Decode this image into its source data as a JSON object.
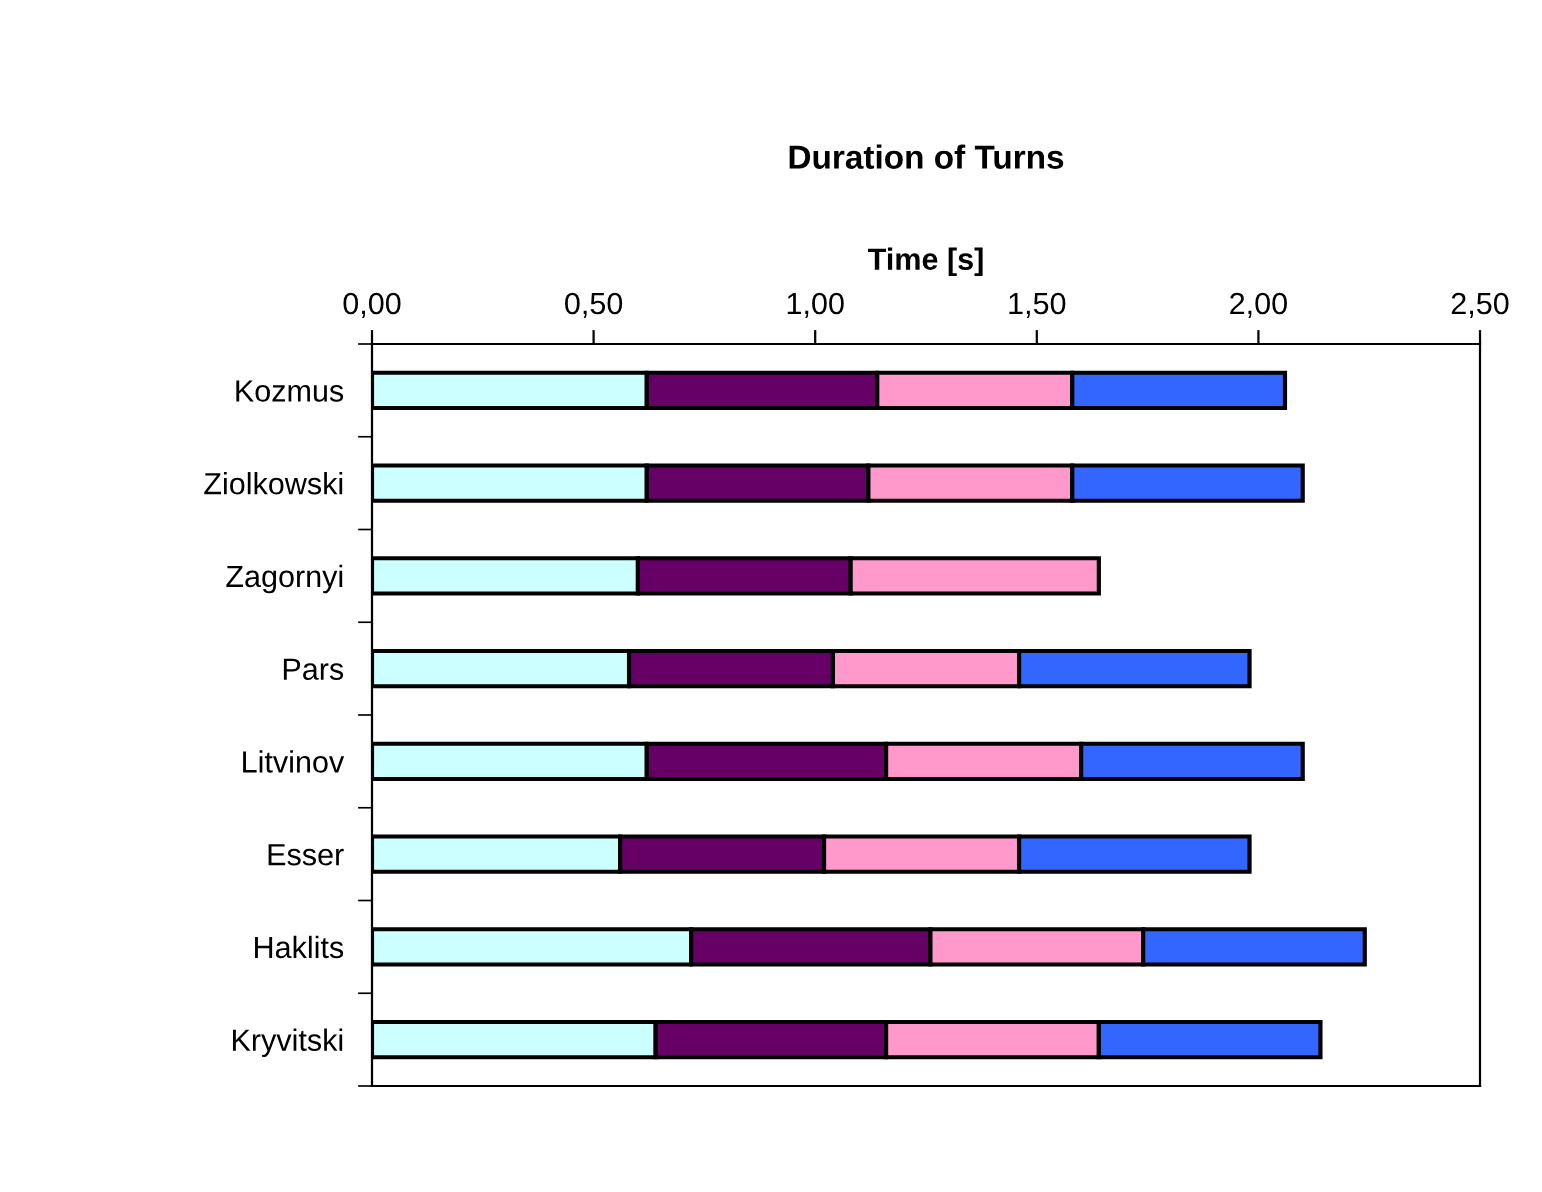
{
  "chart_data": {
    "type": "bar",
    "orientation": "horizontal",
    "stacked": true,
    "title": "Duration of Turns",
    "xlabel": "Time [s]",
    "categories": [
      "Kozmus",
      "Ziolkowski",
      "Zagornyi",
      "Pars",
      "Litvinov",
      "Esser",
      "Haklits",
      "Kryvitski"
    ],
    "series": [
      {
        "color": "#ccffff",
        "values": [
          0.62,
          0.62,
          0.6,
          0.58,
          0.62,
          0.56,
          0.72,
          0.64
        ]
      },
      {
        "color": "#660066",
        "values": [
          0.52,
          0.5,
          0.48,
          0.46,
          0.54,
          0.46,
          0.54,
          0.52
        ]
      },
      {
        "color": "#ff99cc",
        "values": [
          0.44,
          0.46,
          0.56,
          0.42,
          0.44,
          0.44,
          0.48,
          0.48
        ]
      },
      {
        "color": "#3366ff",
        "values": [
          0.48,
          0.52,
          null,
          0.52,
          0.5,
          0.52,
          0.5,
          0.5
        ]
      }
    ],
    "xlim": [
      0,
      2.5
    ],
    "xticks": [
      {
        "value": 0,
        "label": "0,00"
      },
      {
        "value": 0.5,
        "label": "0,50"
      },
      {
        "value": 1.0,
        "label": "1,00"
      },
      {
        "value": 1.5,
        "label": "1,50"
      },
      {
        "value": 2.0,
        "label": "2,00"
      },
      {
        "value": 2.5,
        "label": "2,50"
      }
    ],
    "grid": false
  }
}
